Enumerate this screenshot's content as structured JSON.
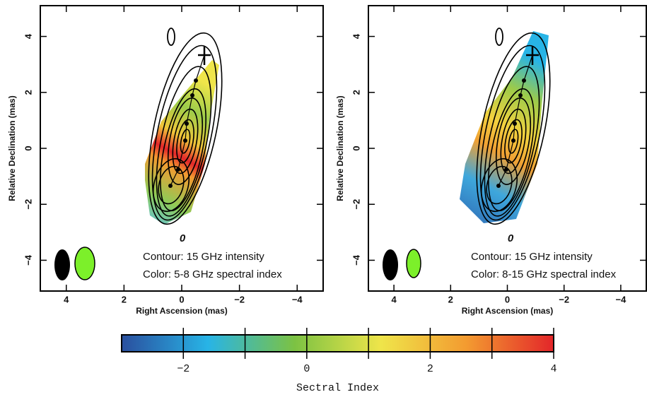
{
  "chart_data": [
    {
      "type": "image",
      "xlabel": "Right Ascension  (mas)",
      "ylabel": "Relative Declination  (mas)",
      "annotations": [
        "Contour: 15 GHz intensity",
        "Color: 5-8 GHz  spectral index"
      ],
      "xlim": [
        4.9,
        -4.9
      ],
      "ylim": [
        -5.1,
        5.1
      ],
      "xticks": [
        4,
        2,
        0,
        {
          "value": -2,
          "label": "−2"
        },
        {
          "value": -4,
          "label": "−4"
        }
      ],
      "yticks": [
        {
          "value": -4,
          "label": "−4"
        },
        {
          "value": -2,
          "label": "−2"
        },
        0,
        2,
        4
      ]
    },
    {
      "type": "image",
      "xlabel": "Right Ascension  (mas)",
      "ylabel": "Relative Declination  (mas)",
      "annotations": [
        "Contour: 15 GHz intensity",
        "Color: 8-15 GHz  spectral index"
      ],
      "xlim": [
        4.9,
        -4.9
      ],
      "ylim": [
        -5.1,
        5.1
      ],
      "xticks": [
        4,
        2,
        0,
        {
          "value": -2,
          "label": "−2"
        },
        {
          "value": -4,
          "label": "−4"
        }
      ],
      "yticks": [
        {
          "value": -4,
          "label": "−4"
        },
        {
          "value": -2,
          "label": "−2"
        },
        0,
        2,
        4
      ]
    },
    {
      "type": "colorbar",
      "xlabel": "Sectral Index",
      "xlim": [
        -3,
        4
      ],
      "xticks": [
        {
          "value": -2,
          "label": "−2"
        },
        0,
        2,
        4
      ],
      "minor_ticks": [
        -1,
        1,
        3
      ],
      "colors": [
        "#2a4f9e",
        "#28b4e6",
        "#7cc243",
        "#efe54a",
        "#f39a30",
        "#e3262a"
      ]
    }
  ]
}
